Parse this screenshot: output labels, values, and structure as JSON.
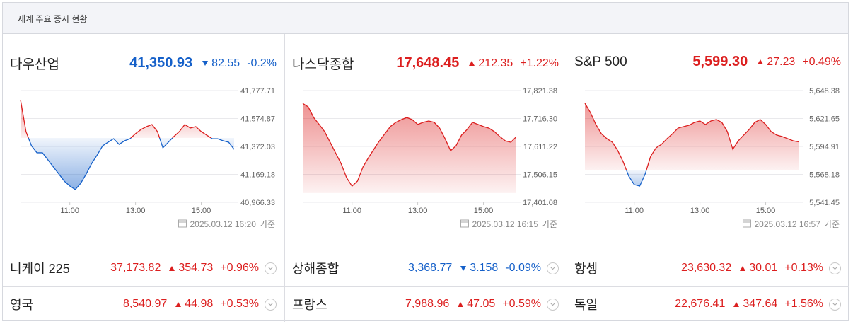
{
  "header": {
    "title": "세계 주요 증시 현황"
  },
  "colors": {
    "up": "#dc1f1f",
    "down": "#1560c9"
  },
  "panels": [
    {
      "name": "다우산업",
      "price": "41,350.93",
      "change": "82.55",
      "change_pct": "-0.2%",
      "direction": "down",
      "timestamp": "2025.03.12 16:20",
      "basis": "기준",
      "chart_data": {
        "type": "line",
        "x": [
          "09:30",
          "09:40",
          "09:50",
          "10:00",
          "10:10",
          "10:20",
          "10:30",
          "10:40",
          "10:50",
          "11:00",
          "11:10",
          "11:20",
          "11:30",
          "11:40",
          "11:50",
          "12:00",
          "12:10",
          "12:20",
          "12:30",
          "12:40",
          "12:50",
          "13:00",
          "13:10",
          "13:20",
          "13:30",
          "13:40",
          "13:50",
          "14:00",
          "14:10",
          "14:20",
          "14:30",
          "14:40",
          "14:50",
          "15:00",
          "15:10",
          "15:20",
          "15:30",
          "15:40",
          "15:50",
          "16:00"
        ],
        "xlim": [
          "09:30",
          "16:00"
        ],
        "xticks": [
          "11:00",
          "13:00",
          "15:00"
        ],
        "values": [
          41711,
          41480,
          41377,
          41326,
          41326,
          41275,
          41223,
          41172,
          41120,
          41085,
          41059,
          41105,
          41172,
          41249,
          41310,
          41377,
          41403,
          41428,
          41387,
          41413,
          41428,
          41465,
          41495,
          41516,
          41531,
          41480,
          41362,
          41403,
          41444,
          41480,
          41531,
          41506,
          41516,
          41480,
          41454,
          41428,
          41428,
          41413,
          41403,
          41351
        ],
        "ylim": [
          40966.33,
          41777.71
        ],
        "yticks": [
          {
            "value": 40966.33,
            "label": "40,966.33"
          },
          {
            "value": 41169.18,
            "label": "41,169.18"
          },
          {
            "value": 41372.03,
            "label": "41,372.03"
          },
          {
            "value": 41574.87,
            "label": "41,574.87"
          },
          {
            "value": 41777.71,
            "label": "41,777.71"
          }
        ]
      }
    },
    {
      "name": "나스닥종합",
      "price": "17,648.45",
      "change": "212.35",
      "change_pct": "+1.22%",
      "direction": "up",
      "timestamp": "2025.03.12 16:15",
      "basis": "기준",
      "chart_data": {
        "type": "line",
        "x": [
          "09:30",
          "09:40",
          "09:50",
          "10:00",
          "10:10",
          "10:20",
          "10:30",
          "10:40",
          "10:50",
          "11:00",
          "11:10",
          "11:20",
          "11:30",
          "11:40",
          "11:50",
          "12:00",
          "12:10",
          "12:20",
          "12:30",
          "12:40",
          "12:50",
          "13:00",
          "13:10",
          "13:20",
          "13:30",
          "13:40",
          "13:50",
          "14:00",
          "14:10",
          "14:20",
          "14:30",
          "14:40",
          "14:50",
          "15:00",
          "15:10",
          "15:20",
          "15:30",
          "15:40",
          "15:50",
          "16:00"
        ],
        "xlim": [
          "09:30",
          "16:00"
        ],
        "xticks": [
          "11:00",
          "13:00",
          "15:00"
        ],
        "values": [
          17773,
          17760,
          17720,
          17694,
          17667,
          17627,
          17587,
          17547,
          17494,
          17462,
          17481,
          17534,
          17569,
          17601,
          17632,
          17659,
          17686,
          17702,
          17712,
          17720,
          17712,
          17694,
          17702,
          17707,
          17702,
          17680,
          17640,
          17595,
          17614,
          17654,
          17675,
          17702,
          17694,
          17686,
          17680,
          17667,
          17648,
          17632,
          17627,
          17648
        ],
        "ylim": [
          17401.08,
          17821.38
        ],
        "yticks": [
          {
            "value": 17401.08,
            "label": "17,401.08"
          },
          {
            "value": 17506.15,
            "label": "17,506.15"
          },
          {
            "value": 17611.22,
            "label": "17,611.22"
          },
          {
            "value": 17716.3,
            "label": "17,716.30"
          },
          {
            "value": 17821.38,
            "label": "17,821.38"
          }
        ]
      }
    },
    {
      "name": "S&P 500",
      "price": "5,599.30",
      "change": "27.23",
      "change_pct": "+0.49%",
      "direction": "up",
      "timestamp": "2025.03.12 16:57",
      "basis": "기준",
      "chart_data": {
        "type": "line",
        "x": [
          "09:30",
          "09:40",
          "09:50",
          "10:00",
          "10:10",
          "10:20",
          "10:30",
          "10:40",
          "10:50",
          "11:00",
          "11:10",
          "11:20",
          "11:30",
          "11:40",
          "11:50",
          "12:00",
          "12:10",
          "12:20",
          "12:30",
          "12:40",
          "12:50",
          "13:00",
          "13:10",
          "13:20",
          "13:30",
          "13:40",
          "13:50",
          "14:00",
          "14:10",
          "14:20",
          "14:30",
          "14:40",
          "14:50",
          "15:00",
          "15:10",
          "15:20",
          "15:30",
          "15:40",
          "15:50",
          "16:00"
        ],
        "xlim": [
          "09:30",
          "16:00"
        ],
        "xticks": [
          "11:00",
          "13:00",
          "15:00"
        ],
        "values": [
          5636.2,
          5627.4,
          5615.9,
          5607.1,
          5602.4,
          5599.0,
          5590.9,
          5580.0,
          5566.5,
          5558.4,
          5557.0,
          5568.5,
          5585.5,
          5593.6,
          5597.0,
          5602.4,
          5607.1,
          5612.5,
          5613.9,
          5615.2,
          5617.9,
          5619.3,
          5615.9,
          5619.3,
          5620.7,
          5617.9,
          5609.1,
          5592.2,
          5600.3,
          5605.8,
          5611.2,
          5617.9,
          5620.7,
          5615.9,
          5609.1,
          5605.8,
          5604.4,
          5602.4,
          5600.3,
          5599.3
        ],
        "ylim": [
          5541.45,
          5648.38
        ],
        "yticks": [
          {
            "value": 5541.45,
            "label": "5,541.45"
          },
          {
            "value": 5568.18,
            "label": "5,568.18"
          },
          {
            "value": 5594.91,
            "label": "5,594.91"
          },
          {
            "value": 5621.65,
            "label": "5,621.65"
          },
          {
            "value": 5648.38,
            "label": "5,648.38"
          }
        ]
      }
    }
  ],
  "rows": [
    [
      {
        "name": "니케이 225",
        "price": "37,173.82",
        "change": "354.73",
        "change_pct": "+0.96%",
        "direction": "up"
      },
      {
        "name": "상해종합",
        "price": "3,368.77",
        "change": "3.158",
        "change_pct": "-0.09%",
        "direction": "down"
      },
      {
        "name": "항셍",
        "price": "23,630.32",
        "change": "30.01",
        "change_pct": "+0.13%",
        "direction": "up"
      }
    ],
    [
      {
        "name": "영국",
        "price": "8,540.97",
        "change": "44.98",
        "change_pct": "+0.53%",
        "direction": "up"
      },
      {
        "name": "프랑스",
        "price": "7,988.96",
        "change": "47.05",
        "change_pct": "+0.59%",
        "direction": "up"
      },
      {
        "name": "독일",
        "price": "22,676.41",
        "change": "347.64",
        "change_pct": "+1.56%",
        "direction": "up"
      }
    ]
  ]
}
